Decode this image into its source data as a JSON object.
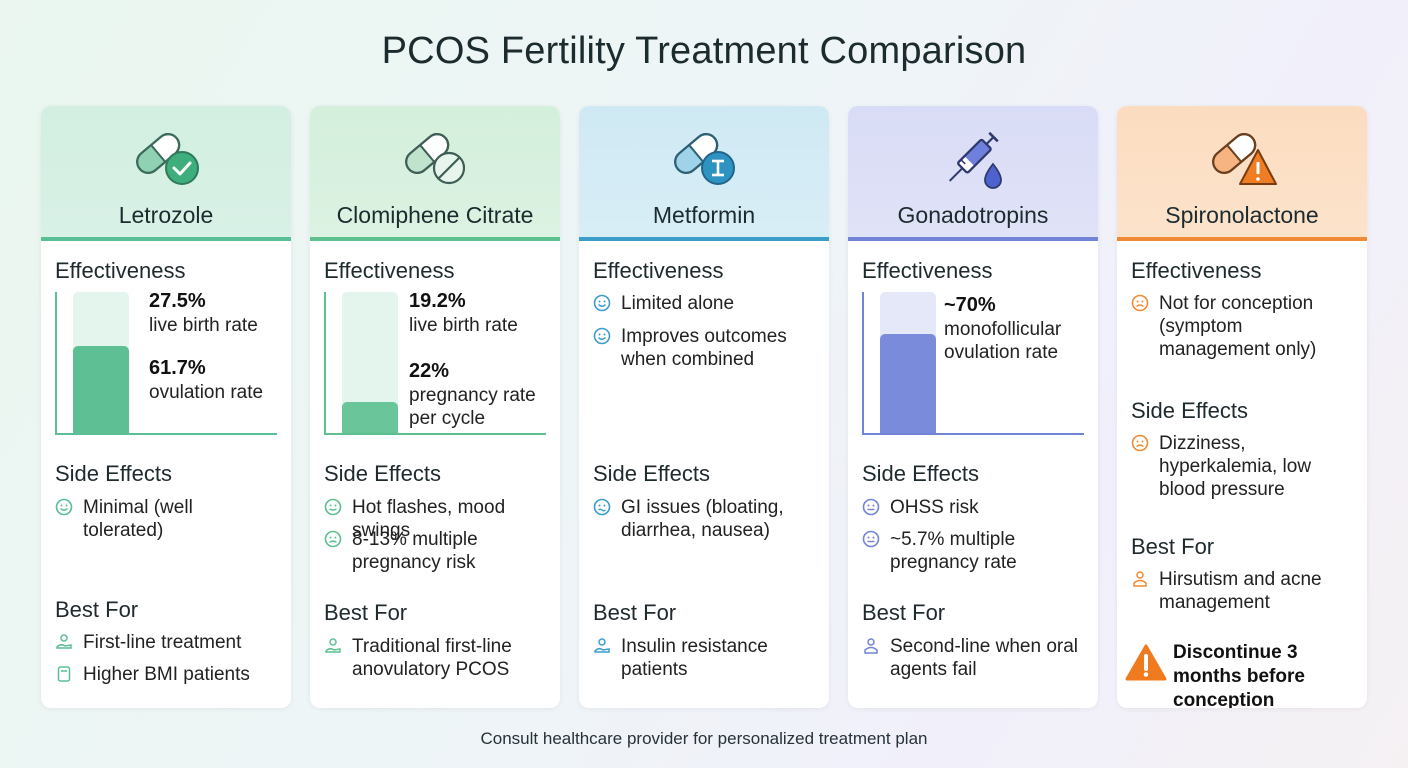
{
  "title": "PCOS Fertility Treatment Comparison",
  "footer": "Consult healthcare provider for personalized treatment plan",
  "section_labels": {
    "effectiveness": "Effectiveness",
    "side_effects": "Side Effects",
    "best_for": "Best For"
  },
  "colors": {
    "letrozole_accent": "#5bbf95",
    "clomiphene_accent": "#5cc08f",
    "metformin_accent": "#3a9ec9",
    "gonadotropins_accent": "#7283d8",
    "spironolactone_accent": "#ef8a35"
  },
  "cards": {
    "letrozole": {
      "name": "Letrozole",
      "icon": "pill-check-icon",
      "stat1_value": "27.5%",
      "stat1_label": "live birth rate",
      "stat2_value": "61.7%",
      "stat2_label": "ovulation rate",
      "bar_fraction": 0.617,
      "side_effects": [
        "Minimal (well tolerated)"
      ],
      "best_for": [
        "First-line treatment",
        "Higher BMI patients"
      ]
    },
    "clomiphene": {
      "name": "Clomiphene Citrate",
      "icon": "pill-block-icon",
      "stat1_value": "19.2%",
      "stat1_label": "live birth rate",
      "stat2_value": "22%",
      "stat2_label": "pregnancy rate per cycle",
      "bar_fraction": 0.22,
      "side_effects": [
        "Hot flashes, mood swings",
        "8-13% multiple pregnancy risk"
      ],
      "best_for": [
        "Traditional first-line anovulatory PCOS"
      ]
    },
    "metformin": {
      "name": "Metformin",
      "icon": "pill-insulin-icon",
      "effectiveness": [
        "Limited alone",
        "Improves outcomes when combined"
      ],
      "side_effects": [
        "GI issues (bloating, diarrhea, nausea)"
      ],
      "best_for": [
        "Insulin resistance patients"
      ]
    },
    "gonadotropins": {
      "name": "Gonadotropins",
      "icon": "syringe-icon",
      "stat1_value": "~70%",
      "stat1_label": "monofollicular ovulation rate",
      "bar_fraction": 0.7,
      "side_effects": [
        "OHSS risk",
        "~5.7% multiple pregnancy rate"
      ],
      "best_for": [
        "Second-line when oral agents fail"
      ]
    },
    "spironolactone": {
      "name": "Spironolactone",
      "icon": "pill-warning-icon",
      "effectiveness": [
        "Not for conception (symptom management only)"
      ],
      "side_effects": [
        "Dizziness, hyperkalemia, low blood pressure"
      ],
      "best_for": [
        "Hirsutism and acne management"
      ],
      "warning": "Discontinue 3 months before conception"
    }
  }
}
